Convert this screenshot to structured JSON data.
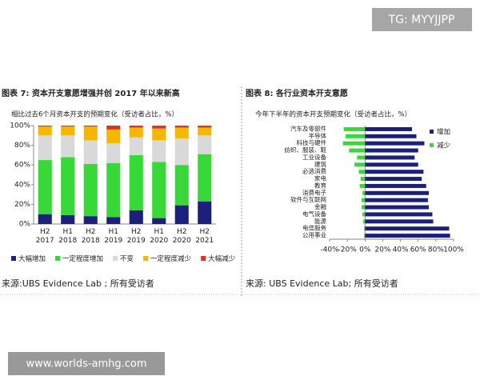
{
  "watermark": "TG: MYYJJPP",
  "footer_watermark": "www.worlds-amhg.com",
  "chart_data": [
    {
      "type": "bar",
      "stacked": true,
      "title": "图表 7: 资本开支意愿增强并创 2017 年以来新高",
      "subtitle": "相比过去6个月资本开支的预期变化（受访者占比，%）",
      "source": "来源:UBS Evidence Lab ; 所有受访者",
      "categories": [
        "H2 2017",
        "H1 2018",
        "H2 2018",
        "H1 2019",
        "H2 2019",
        "H1 2020",
        "H2 2020",
        "H2 2021"
      ],
      "series": [
        {
          "name": "大幅增加",
          "color": "#1c1f7c",
          "values": [
            10,
            9,
            8,
            7,
            14,
            6,
            19,
            23
          ]
        },
        {
          "name": "一定程度增加",
          "color": "#38d838",
          "values": [
            55,
            59,
            53,
            55,
            56,
            57,
            41,
            48
          ]
        },
        {
          "name": "不变",
          "color": "#d9d9d9",
          "values": [
            25,
            22,
            24,
            20,
            18,
            22,
            27,
            19
          ]
        },
        {
          "name": "一定程度减少",
          "color": "#f5b800",
          "values": [
            9,
            9,
            14,
            14,
            10,
            12,
            11,
            8
          ]
        },
        {
          "name": "大幅减少",
          "color": "#e0302a",
          "values": [
            1,
            1,
            1,
            4,
            2,
            3,
            2,
            2
          ]
        }
      ],
      "ylim": [
        0,
        100
      ],
      "yticks": [
        {
          "value": 0,
          "label": "0%"
        },
        {
          "value": 20,
          "label": "20%"
        },
        {
          "value": 40,
          "label": "40%"
        },
        {
          "value": 60,
          "label": "60%"
        },
        {
          "value": 80,
          "label": "80%"
        },
        {
          "value": 100,
          "label": "100%"
        }
      ],
      "legend": "bottom"
    },
    {
      "type": "hbar",
      "title": "图表 8: 各行业资本开支意愿",
      "subtitle": "今年下半年的资本开支预期变化（受访者占比，%）",
      "source": "来源: UBS Evidence Lab; 所有受访者",
      "categories": [
        "汽车及零部件",
        "半导体",
        "科技与硬件",
        "纺织、服装、鞋",
        "工业设备",
        "建筑",
        "必选消费",
        "家电",
        "教育",
        "消费电子",
        "软件与互联网",
        "金融",
        "电气设备",
        "能源",
        "电信服务",
        "公用事业"
      ],
      "series": [
        {
          "name": "增加",
          "color": "#1c1f7c",
          "values": [
            53,
            58,
            67,
            60,
            56,
            60,
            66,
            64,
            69,
            72,
            71,
            72,
            76,
            77,
            95,
            96
          ]
        },
        {
          "name": "减少",
          "color": "#38d838",
          "values": [
            -24,
            -22,
            -25,
            -18,
            -9,
            -12,
            -7,
            -5,
            -6,
            -3,
            -4,
            -4,
            -3,
            -2,
            -1,
            -1
          ]
        }
      ],
      "xlim": [
        -40,
        100
      ],
      "xticks": [
        {
          "value": -40,
          "label": "-40%"
        },
        {
          "value": -20,
          "label": "-20%"
        },
        {
          "value": 0,
          "label": "0%"
        },
        {
          "value": 20,
          "label": "20%"
        },
        {
          "value": 40,
          "label": "40%"
        },
        {
          "value": 60,
          "label": "60%"
        },
        {
          "value": 80,
          "label": "80%"
        },
        {
          "value": 100,
          "label": "100%"
        }
      ],
      "legend": "right"
    }
  ]
}
